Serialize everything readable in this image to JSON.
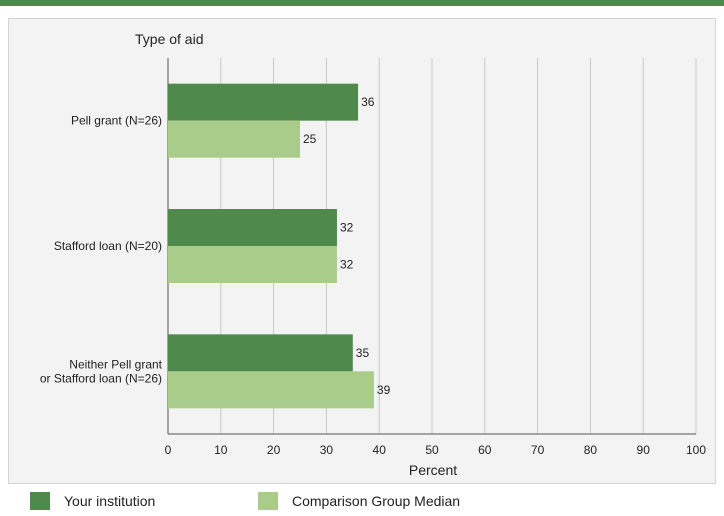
{
  "chart_data": {
    "type": "bar",
    "orientation": "horizontal",
    "yaxis_title": "Type of aid",
    "xlabel": "Percent",
    "categories": [
      "Pell grant  (N=26)",
      "Stafford loan (N=20)",
      "Neither Pell grant\nor Stafford loan (N=26)"
    ],
    "series": [
      {
        "name": "Your institution",
        "values": [
          36,
          32,
          35
        ],
        "color": "#4f8a4c"
      },
      {
        "name": "Comparison Group Median",
        "values": [
          25,
          32,
          39
        ],
        "color": "#a9cc8a"
      }
    ],
    "xlim": [
      0,
      100
    ],
    "xticks": [
      "0",
      "10",
      "20",
      "30",
      "40",
      "50",
      "60",
      "70",
      "80",
      "90",
      "100"
    ],
    "grid": true,
    "legend_position": "bottom"
  }
}
